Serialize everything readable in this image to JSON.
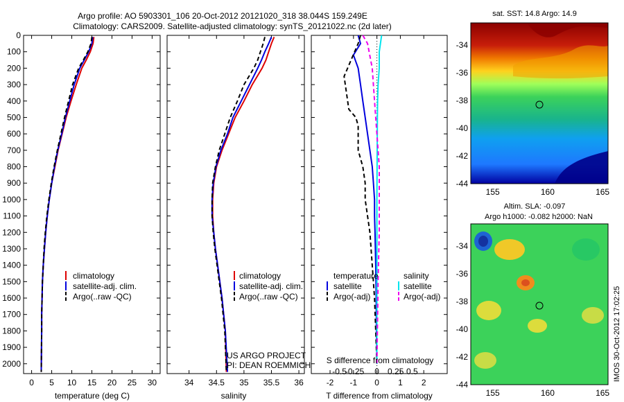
{
  "header": {
    "line1": "Argo profile: AO 5903301_106 20-Oct-2012 20121020_318 38.044S 159.249E",
    "line2": "Climatology: CARS2009. Satellite-adjusted climatology: synTS_20121022.nc (2d later)"
  },
  "colors": {
    "climatology": "#dd0000",
    "satellite": "#0000dd",
    "argo": "#000000",
    "sat_salinity": "#00e5ee",
    "argo_salinity": "#ee00ee"
  },
  "credit": {
    "line1": "US ARGO PROJECT",
    "line2": "PI: DEAN ROEMMICH"
  },
  "stamp": "IMOS 30-Oct-2012 17:02:25",
  "chart_data": [
    {
      "type": "line",
      "xlabel": "temperature (deg C)",
      "ylabel": "",
      "xlim": [
        -2,
        32
      ],
      "ylim": [
        2060,
        0
      ],
      "y_reversed": true,
      "xticks": [
        0,
        5,
        10,
        15,
        20,
        25,
        30
      ],
      "yticks": [
        0,
        100,
        200,
        300,
        400,
        500,
        600,
        700,
        800,
        900,
        1000,
        1100,
        1200,
        1300,
        1400,
        1500,
        1600,
        1700,
        1800,
        1900,
        2000
      ],
      "legend": [
        "climatology",
        "satellite-adj. clim.",
        "Argo(..raw -QC)"
      ],
      "series": [
        {
          "name": "climatology",
          "color": "red",
          "style": "solid",
          "x": [
            15.5,
            15.3,
            14.6,
            13.6,
            12.5,
            11.1,
            9.8,
            8.6,
            7.6,
            6.6,
            5.8,
            5.0,
            4.4,
            3.9,
            3.5,
            3.2,
            2.9,
            2.7,
            2.6,
            2.5,
            2.5,
            2.4
          ],
          "y": [
            10,
            50,
            100,
            150,
            200,
            300,
            400,
            500,
            600,
            700,
            800,
            900,
            1000,
            1100,
            1200,
            1300,
            1400,
            1500,
            1600,
            1700,
            1800,
            2050
          ]
        },
        {
          "name": "satellite-adj. clim.",
          "color": "blue",
          "style": "solid",
          "x": [
            15.2,
            15.0,
            14.2,
            13.1,
            12.0,
            10.6,
            9.5,
            8.4,
            7.5,
            6.5,
            5.7,
            5.0,
            4.4,
            3.9,
            3.5,
            3.2,
            2.9,
            2.7,
            2.6,
            2.5,
            2.5,
            2.4
          ],
          "y": [
            10,
            50,
            100,
            150,
            200,
            300,
            400,
            500,
            600,
            700,
            800,
            900,
            1000,
            1100,
            1200,
            1300,
            1400,
            1500,
            1600,
            1700,
            1800,
            2050
          ]
        },
        {
          "name": "Argo(..raw -QC)",
          "color": "black",
          "style": "dashed",
          "x": [
            15.0,
            14.8,
            14.0,
            12.9,
            11.7,
            10.2,
            9.2,
            8.2,
            7.3,
            6.4,
            5.6,
            4.9,
            4.3,
            3.8,
            3.4,
            3.1,
            2.9,
            2.7,
            2.6,
            2.5,
            2.5,
            2.4
          ],
          "y": [
            10,
            50,
            100,
            150,
            200,
            300,
            400,
            500,
            600,
            700,
            800,
            900,
            1000,
            1100,
            1200,
            1300,
            1400,
            1500,
            1600,
            1700,
            1800,
            2050
          ]
        }
      ]
    },
    {
      "type": "line",
      "xlabel": "salinity",
      "xlim": [
        33.6,
        36.1
      ],
      "ylim": [
        2060,
        0
      ],
      "y_reversed": true,
      "xticks": [
        34,
        34.5,
        35,
        35.5,
        36
      ],
      "legend": [
        "climatology",
        "satellite-adj. clim.",
        "Argo(..raw -QC)"
      ],
      "series": [
        {
          "name": "climatology",
          "color": "red",
          "style": "solid",
          "x": [
            35.55,
            35.5,
            35.45,
            35.4,
            35.33,
            35.15,
            35.0,
            34.84,
            34.72,
            34.6,
            34.5,
            34.45,
            34.43,
            34.43,
            34.45,
            34.48,
            34.52,
            34.56,
            34.6,
            34.63,
            34.66,
            34.68
          ],
          "y": [
            10,
            50,
            100,
            150,
            200,
            300,
            400,
            500,
            600,
            700,
            800,
            900,
            1000,
            1100,
            1200,
            1300,
            1400,
            1500,
            1600,
            1700,
            1800,
            2050
          ]
        },
        {
          "name": "satellite-adj. clim.",
          "color": "blue",
          "style": "solid",
          "x": [
            35.5,
            35.45,
            35.38,
            35.32,
            35.25,
            35.1,
            34.95,
            34.8,
            34.7,
            34.58,
            34.49,
            34.44,
            34.42,
            34.42,
            34.45,
            34.48,
            34.52,
            34.56,
            34.6,
            34.63,
            34.66,
            34.7
          ],
          "y": [
            10,
            50,
            100,
            150,
            200,
            300,
            400,
            500,
            600,
            700,
            800,
            900,
            1000,
            1100,
            1200,
            1300,
            1400,
            1500,
            1600,
            1700,
            1800,
            2050
          ]
        },
        {
          "name": "Argo(..raw -QC)",
          "color": "black",
          "style": "dashed",
          "x": [
            35.38,
            35.35,
            35.3,
            35.25,
            35.18,
            35.0,
            34.88,
            34.75,
            34.65,
            34.55,
            34.48,
            34.43,
            34.42,
            34.42,
            34.44,
            34.47,
            34.51,
            34.55,
            34.59,
            34.62,
            34.65,
            34.68
          ],
          "y": [
            10,
            50,
            100,
            150,
            200,
            300,
            400,
            500,
            600,
            700,
            800,
            900,
            1000,
            1100,
            1200,
            1300,
            1400,
            1500,
            1600,
            1700,
            1800,
            2050
          ]
        }
      ]
    },
    {
      "type": "line",
      "xlabel": "T difference from climatology",
      "top_label": "S difference from climatology",
      "xlim": [
        -2.8,
        3.0
      ],
      "ylim": [
        2060,
        0
      ],
      "y_reversed": true,
      "xticks": [
        -2,
        -1,
        0,
        1,
        2
      ],
      "top_xticks": [
        "-0.5",
        "-0.25",
        "0",
        "0.25",
        "0.5"
      ],
      "legend_titles": [
        "temperature",
        "salinity"
      ],
      "legend": [
        "satellite",
        "Argo(-adj)",
        "satellite",
        "Argo(-adj)"
      ],
      "series": [
        {
          "name": "satellite",
          "group": "temperature",
          "color": "blue",
          "style": "solid",
          "x": [
            -0.8,
            -0.7,
            -1.0,
            -0.8,
            -0.7,
            -0.6,
            -0.5,
            -0.4,
            -0.3,
            -0.2,
            -0.15,
            -0.1,
            -0.1,
            -0.08,
            -0.05,
            -0.03,
            -0.02,
            0
          ],
          "y": [
            0,
            50,
            120,
            200,
            300,
            400,
            500,
            600,
            700,
            800,
            900,
            1000,
            1100,
            1200,
            1400,
            1600,
            1800,
            2000
          ]
        },
        {
          "name": "Argo(-adj)",
          "group": "temperature",
          "color": "black",
          "style": "dashed",
          "x": [
            -0.7,
            -0.8,
            -1.1,
            -1.4,
            -1.3,
            -1.2,
            -0.9,
            -0.8,
            -0.8,
            -0.6,
            -0.5,
            -0.5,
            -0.4,
            -0.3,
            -0.2,
            -0.1,
            -0.05,
            0
          ],
          "y": [
            0,
            50,
            150,
            250,
            350,
            450,
            500,
            550,
            700,
            800,
            900,
            1000,
            1100,
            1200,
            1400,
            1600,
            1800,
            2000
          ]
        },
        {
          "name": "satellite",
          "group": "salinity",
          "color": "cyan",
          "style": "solid",
          "x": [
            0.2,
            0.1,
            0.1,
            0.05,
            0.03,
            0.02,
            0.01,
            0,
            0
          ],
          "y": [
            0,
            100,
            200,
            300,
            400,
            500,
            700,
            1000,
            2000
          ]
        },
        {
          "name": "Argo(-adj)",
          "group": "salinity",
          "color": "magenta",
          "style": "dashed",
          "x": [
            -0.6,
            -0.4,
            -0.2,
            -0.1,
            0,
            0.1,
            0.1,
            0.1,
            0.05,
            0
          ],
          "y": [
            0,
            50,
            200,
            400,
            600,
            800,
            1000,
            1200,
            1500,
            2000
          ]
        }
      ]
    },
    {
      "type": "heatmap",
      "title": "sat. SST: 14.8 Argo: 14.9",
      "xlim": [
        153,
        165.5
      ],
      "ylim": [
        -44,
        -32.4
      ],
      "xticks": [
        155,
        160,
        165
      ],
      "yticks": [
        -34,
        -36,
        -38,
        -40,
        -42,
        -44
      ],
      "marker": {
        "lon": 159.249,
        "lat": -38.044
      }
    },
    {
      "type": "heatmap",
      "title": "Altim. SLA: -0.097",
      "subtitle": "Argo h1000: -0.082 h2000: NaN",
      "xlim": [
        153,
        165.5
      ],
      "ylim": [
        -44,
        -32.4
      ],
      "xticks": [
        155,
        160,
        165
      ],
      "yticks": [
        -34,
        -36,
        -38,
        -40,
        -42,
        -44
      ],
      "marker": {
        "lon": 159.249,
        "lat": -38.044
      }
    }
  ]
}
